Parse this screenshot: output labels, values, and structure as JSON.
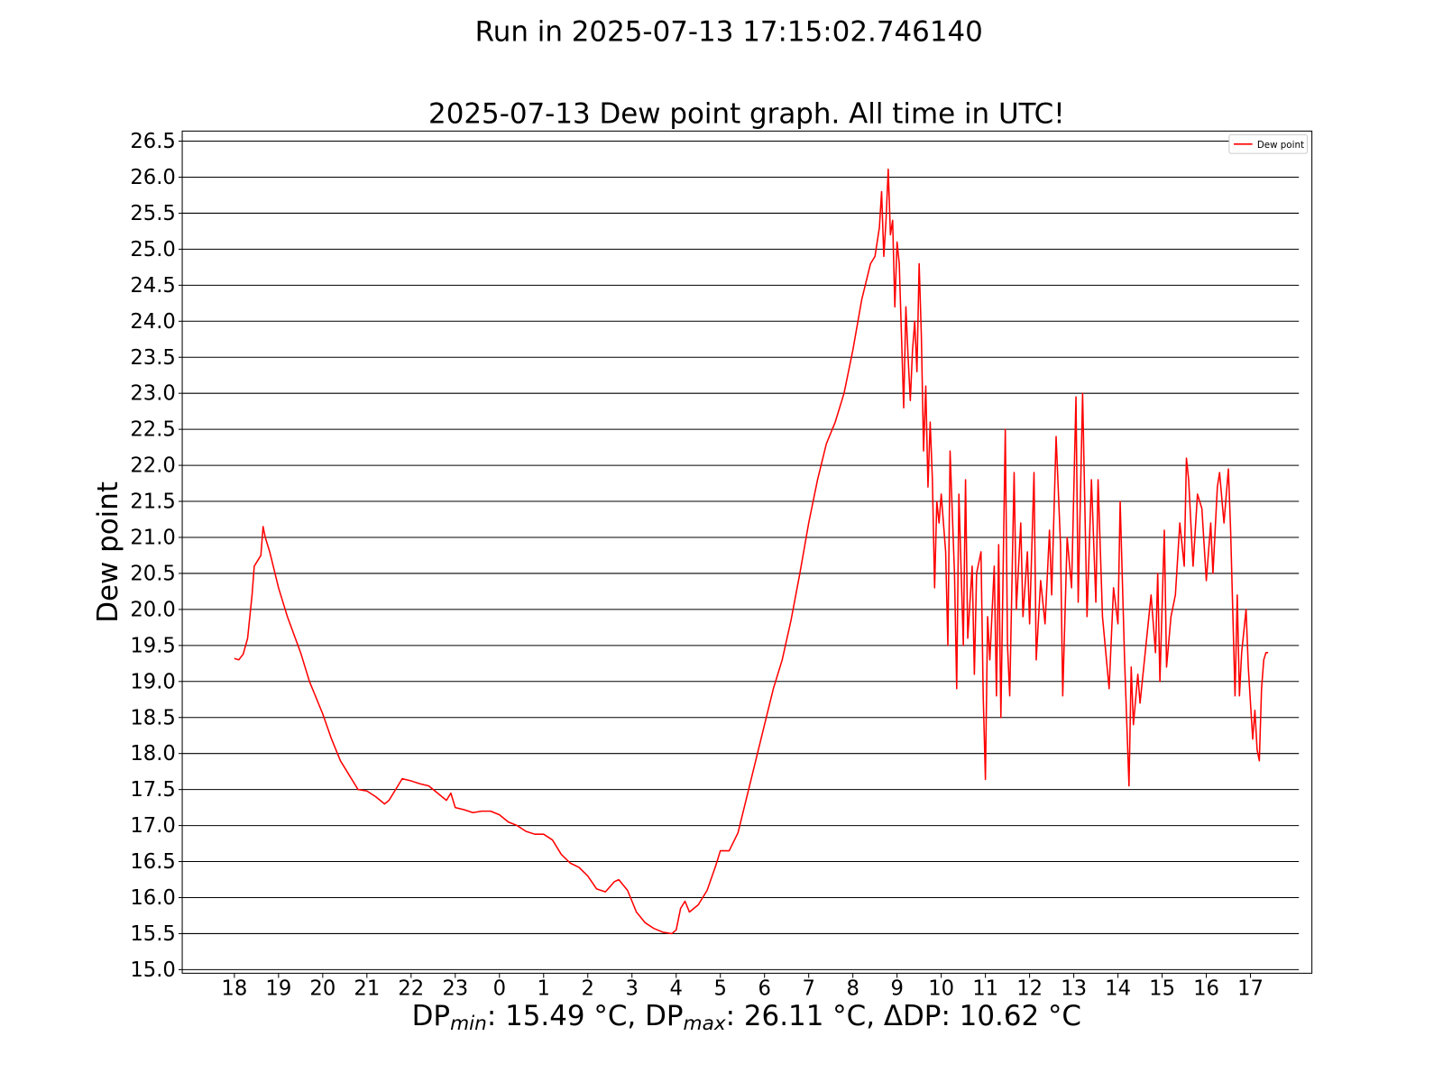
{
  "chart_data": {
    "type": "line",
    "suptitle": "Run in 2025-07-13 17:15:02.746140",
    "title": "2025-07-13 Dew point graph. All time in UTC!",
    "ylabel": "Dew point",
    "xlabel_parts": [
      "DP",
      "min",
      ": 15.49 °C,   DP",
      "max",
      ": 26.11 °C,   ΔDP: 10.62 °C"
    ],
    "grid": true,
    "legend": "upper right",
    "xlim": [
      -1.18,
      24.39
    ],
    "ylim": [
      14.95,
      26.64
    ],
    "xticks": [
      {
        "value": 0,
        "label": "18"
      },
      {
        "value": 1,
        "label": "19"
      },
      {
        "value": 2,
        "label": "20"
      },
      {
        "value": 3,
        "label": "21"
      },
      {
        "value": 4,
        "label": "22"
      },
      {
        "value": 5,
        "label": "23"
      },
      {
        "value": 6,
        "label": "0"
      },
      {
        "value": 7,
        "label": "1"
      },
      {
        "value": 8,
        "label": "2"
      },
      {
        "value": 9,
        "label": "3"
      },
      {
        "value": 10,
        "label": "4"
      },
      {
        "value": 11,
        "label": "5"
      },
      {
        "value": 12,
        "label": "6"
      },
      {
        "value": 13,
        "label": "7"
      },
      {
        "value": 14,
        "label": "8"
      },
      {
        "value": 15,
        "label": "9"
      },
      {
        "value": 16,
        "label": "10"
      },
      {
        "value": 17,
        "label": "11"
      },
      {
        "value": 18,
        "label": "12"
      },
      {
        "value": 19,
        "label": "13"
      },
      {
        "value": 20,
        "label": "14"
      },
      {
        "value": 21,
        "label": "15"
      },
      {
        "value": 22,
        "label": "16"
      },
      {
        "value": 23,
        "label": "17"
      }
    ],
    "yticks": [
      {
        "value": 15,
        "label": "15.0"
      },
      15.5,
      {
        "value": 16,
        "label": "16.0"
      },
      16.5,
      {
        "value": 17,
        "label": "17.0"
      },
      17.5,
      {
        "value": 18,
        "label": "18.0"
      },
      18.5,
      {
        "value": 19,
        "label": "19.0"
      },
      19.5,
      {
        "value": 20,
        "label": "20.0"
      },
      20.5,
      {
        "value": 21,
        "label": "21.0"
      },
      21.5,
      {
        "value": 22,
        "label": "22.0"
      },
      22.5,
      {
        "value": 23,
        "label": "23.0"
      },
      23.5,
      {
        "value": 24,
        "label": "24.0"
      },
      24.5,
      {
        "value": 25,
        "label": "25.0"
      },
      25.5,
      {
        "value": 26,
        "label": "26.0"
      },
      26.5
    ],
    "x": [
      0,
      0.1,
      0.2,
      0.3,
      0.4,
      0.45,
      0.55,
      0.6,
      0.65,
      0.7,
      0.8,
      1,
      1.2,
      1.5,
      1.7,
      2,
      2.2,
      2.4,
      2.6,
      2.8,
      3,
      3.2,
      3.4,
      3.5,
      3.7,
      3.8,
      4,
      4.2,
      4.4,
      4.6,
      4.8,
      4.9,
      5,
      5.2,
      5.4,
      5.6,
      5.8,
      6,
      6.2,
      6.4,
      6.6,
      6.8,
      7,
      7.2,
      7.4,
      7.6,
      7.8,
      8,
      8.2,
      8.4,
      8.6,
      8.7,
      8.9,
      9,
      9.1,
      9.3,
      9.5,
      9.7,
      9.9,
      10,
      10.1,
      10.2,
      10.3,
      10.5,
      10.7,
      10.9,
      11,
      11.2,
      11.4,
      11.6,
      11.8,
      12,
      12.2,
      12.4,
      12.6,
      12.8,
      13,
      13.2,
      13.4,
      13.6,
      13.8,
      14,
      14.2,
      14.4,
      14.5,
      14.6,
      14.65,
      14.7,
      14.75,
      14.8,
      14.85,
      14.9,
      14.95,
      15,
      15.05,
      15.1,
      15.15,
      15.2,
      15.25,
      15.3,
      15.35,
      15.4,
      15.45,
      15.5,
      15.55,
      15.6,
      15.65,
      15.7,
      15.75,
      15.8,
      15.85,
      15.9,
      15.95,
      16,
      16.1,
      16.15,
      16.2,
      16.3,
      16.35,
      16.4,
      16.5,
      16.55,
      16.6,
      16.7,
      16.75,
      16.8,
      16.9,
      16.95,
      17,
      17.05,
      17.1,
      17.2,
      17.25,
      17.3,
      17.35,
      17.45,
      17.5,
      17.55,
      17.65,
      17.7,
      17.8,
      17.85,
      17.95,
      18,
      18.1,
      18.15,
      18.25,
      18.35,
      18.45,
      18.5,
      18.6,
      18.7,
      18.75,
      18.85,
      18.95,
      19.05,
      19.1,
      19.2,
      19.3,
      19.4,
      19.5,
      19.55,
      19.65,
      19.8,
      19.9,
      20,
      20.05,
      20.15,
      20.25,
      20.3,
      20.35,
      20.45,
      20.5,
      20.6,
      20.7,
      20.75,
      20.85,
      20.9,
      20.95,
      21.05,
      21.1,
      21.2,
      21.3,
      21.4,
      21.5,
      21.55,
      21.6,
      21.7,
      21.8,
      21.9,
      22,
      22.1,
      22.15,
      22.25,
      22.3,
      22.4,
      22.5,
      22.55,
      22.65,
      22.7,
      22.75,
      22.8,
      22.9,
      22.95,
      23.05,
      23.1,
      23.15,
      23.2,
      23.25,
      23.3,
      23.35,
      23.4
    ],
    "series": [
      {
        "name": "Dew point",
        "color": "#ff0000",
        "values": [
          19.32,
          19.3,
          19.38,
          19.6,
          20.2,
          20.6,
          20.7,
          20.75,
          21.15,
          21.0,
          20.8,
          20.3,
          19.9,
          19.4,
          19.0,
          18.55,
          18.2,
          17.9,
          17.7,
          17.5,
          17.48,
          17.4,
          17.3,
          17.35,
          17.55,
          17.65,
          17.62,
          17.58,
          17.55,
          17.45,
          17.35,
          17.45,
          17.25,
          17.22,
          17.18,
          17.2,
          17.2,
          17.15,
          17.05,
          17.0,
          16.92,
          16.88,
          16.88,
          16.8,
          16.6,
          16.48,
          16.42,
          16.3,
          16.12,
          16.08,
          16.22,
          16.25,
          16.1,
          15.95,
          15.8,
          15.65,
          15.57,
          15.52,
          15.5,
          15.55,
          15.85,
          15.95,
          15.8,
          15.9,
          16.1,
          16.45,
          16.65,
          16.65,
          16.9,
          17.4,
          17.9,
          18.4,
          18.9,
          19.3,
          19.85,
          20.5,
          21.2,
          21.8,
          22.3,
          22.6,
          23.0,
          23.6,
          24.3,
          24.8,
          24.9,
          25.3,
          25.8,
          24.9,
          25.4,
          26.11,
          25.2,
          25.4,
          24.2,
          25.1,
          24.8,
          23.8,
          22.8,
          24.2,
          23.5,
          22.9,
          23.6,
          24.0,
          23.3,
          24.8,
          23.8,
          22.2,
          23.1,
          21.7,
          22.6,
          21.8,
          20.3,
          21.5,
          21.2,
          21.6,
          20.8,
          19.5,
          22.2,
          20.5,
          18.9,
          21.6,
          19.5,
          21.8,
          19.6,
          20.6,
          19.1,
          20.5,
          20.8,
          18.8,
          17.64,
          19.9,
          19.3,
          20.6,
          18.8,
          20.9,
          18.5,
          22.5,
          19.5,
          18.8,
          21.9,
          20.0,
          21.2,
          19.9,
          20.8,
          19.8,
          21.9,
          19.3,
          20.4,
          19.8,
          21.1,
          20.2,
          22.4,
          20.9,
          18.8,
          21.0,
          20.3,
          22.95,
          20.1,
          23.0,
          19.9,
          21.8,
          20.1,
          21.8,
          19.9,
          18.9,
          20.3,
          19.8,
          21.5,
          19.3,
          17.55,
          19.2,
          18.4,
          19.1,
          18.7,
          19.3,
          19.9,
          20.2,
          19.4,
          20.5,
          19.0,
          21.1,
          19.2,
          19.9,
          20.2,
          21.2,
          20.6,
          22.1,
          21.8,
          20.6,
          21.6,
          21.4,
          20.4,
          21.2,
          20.5,
          21.7,
          21.9,
          21.2,
          21.95,
          21.1,
          18.8,
          20.2,
          18.8,
          19.4,
          20.0,
          19.2,
          18.2,
          18.6,
          18.05,
          17.9,
          18.9,
          19.3,
          19.4,
          19.4
        ]
      }
    ]
  }
}
